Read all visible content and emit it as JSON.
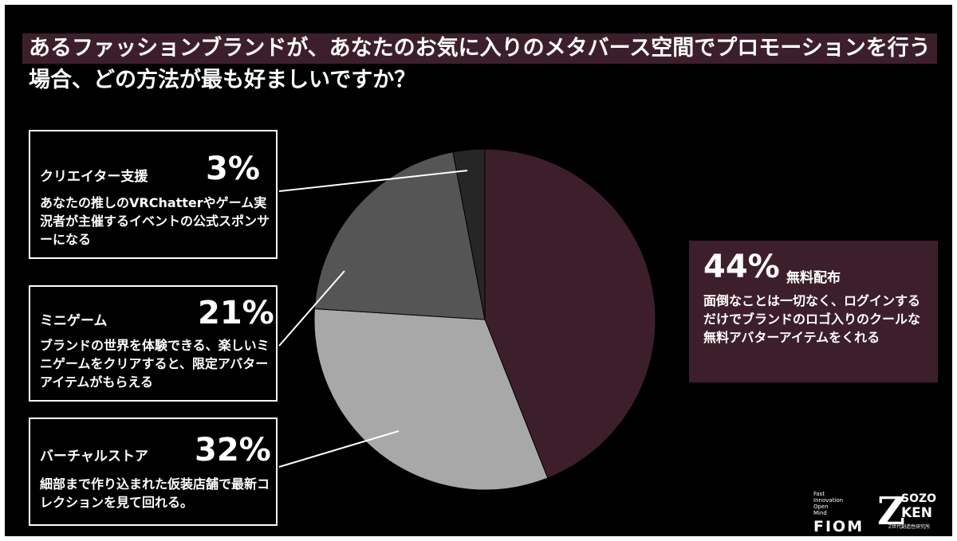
{
  "title": {
    "line1": "あるファッションブランドが、あなたのお気に入りのメタバース空間でプロモーションを行う",
    "line2": "場合、どの方法が最も好ましいですか？"
  },
  "chart_data": {
    "type": "pie",
    "title": "あるファッションブランドが、あなたのお気に入りのメタバース空間でプロモーションを行う場合、どの方法が最も好ましいですか？",
    "start_angle_deg": 0,
    "direction": "clockwise",
    "slices": [
      {
        "label": "無料配布",
        "value": 44,
        "display": "44%",
        "color": "#3d1f2c",
        "description": "面倒なことは一切なく、ログインするだけでブランドのロゴ入りのクールな無料アバターアイテムをくれる"
      },
      {
        "label": "バーチャルストア",
        "value": 32,
        "display": "32%",
        "color": "#a8a8a8",
        "description": "細部まで作り込まれた仮装店舗で最新コレクションを見て回れる。"
      },
      {
        "label": "ミニゲーム",
        "value": 21,
        "display": "21%",
        "color": "#555555",
        "description": "ブランドの世界を体験できる、楽しいミニゲームをクリアすると、限定アバターアイテムがもらえる"
      },
      {
        "label": "クリエイター支援",
        "value": 3,
        "display": "3%",
        "color": "#262626",
        "description": "あなたの推しのVRChatterやゲーム実況者が主催するイベントの公式スポンサーになる"
      }
    ]
  },
  "logos": {
    "fiom_small": [
      "Fast",
      "Innovation",
      "Open",
      "Mind"
    ],
    "fiom_big": "FIOM",
    "sozo_z": "Z",
    "sozo_line1": "SOZO",
    "sozo_line2": "KEN",
    "sozo_sub": "Z世代創造性研究所"
  }
}
